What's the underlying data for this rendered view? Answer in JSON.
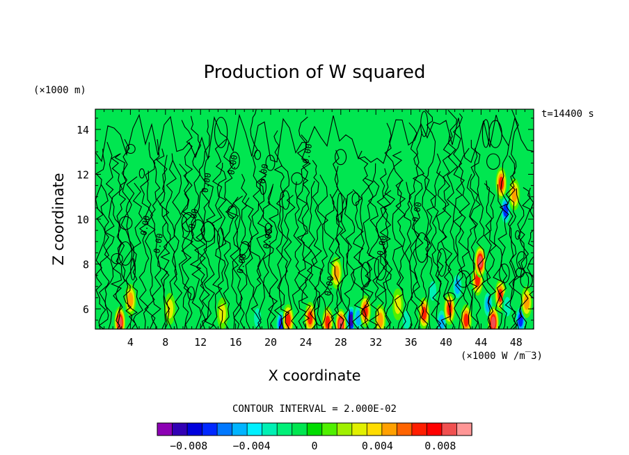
{
  "chart_data": {
    "type": "heatmap",
    "title": "Production of W squared",
    "xlabel": "X coordinate",
    "ylabel": "Z coordinate",
    "x_unit_label": "(×1000 W /m‾3)",
    "y_unit_label": "(×1000 m)",
    "time_label": "t=14400 s",
    "contour_interval_label": "CONTOUR INTERVAL = 2.000E-02",
    "xlim": [
      0,
      50
    ],
    "ylim": [
      5.1,
      14.9
    ],
    "x_ticks": [
      4,
      8,
      12,
      16,
      20,
      24,
      28,
      32,
      36,
      40,
      44,
      48
    ],
    "y_ticks": [
      6,
      8,
      10,
      12,
      14
    ],
    "contour_labels": [
      "0.00",
      "0.00",
      "0.00",
      "0.00",
      "0.00",
      "0.00",
      "0.00",
      "0.00",
      "0.00",
      "0.00",
      "0.00",
      "0.00"
    ],
    "colorbar": {
      "tick_labels": [
        "−0.008",
        "−0.004",
        "0",
        "0.004",
        "0.008"
      ],
      "tick_values": [
        -0.008,
        -0.004,
        0,
        0.004,
        0.008
      ],
      "min": -0.01,
      "max": 0.01,
      "colors": [
        "#8c00b4",
        "#3200b4",
        "#0000dc",
        "#0028ff",
        "#0078ff",
        "#00b4ff",
        "#00f0ff",
        "#00f0b4",
        "#00f078",
        "#00e650",
        "#00dc00",
        "#50f000",
        "#a0f000",
        "#e1f000",
        "#ffdc00",
        "#ffa000",
        "#ff6400",
        "#ff1e00",
        "#ff0000",
        "#f05050",
        "#ff9696"
      ]
    },
    "hotspots": [
      {
        "x": 2.8,
        "z": 5.4,
        "v": 0.009
      },
      {
        "x": 4.0,
        "z": 6.4,
        "v": 0.006
      },
      {
        "x": 21.2,
        "z": 5.3,
        "v": -0.008
      },
      {
        "x": 22.0,
        "z": 5.5,
        "v": 0.008
      },
      {
        "x": 24.5,
        "z": 5.6,
        "v": 0.007
      },
      {
        "x": 26.5,
        "z": 5.4,
        "v": 0.008
      },
      {
        "x": 27.5,
        "z": 7.6,
        "v": 0.006
      },
      {
        "x": 28.0,
        "z": 5.3,
        "v": 0.009
      },
      {
        "x": 29.2,
        "z": 5.5,
        "v": -0.009
      },
      {
        "x": 30.0,
        "z": 5.6,
        "v": -0.006
      },
      {
        "x": 30.8,
        "z": 5.9,
        "v": 0.007
      },
      {
        "x": 32.5,
        "z": 5.5,
        "v": 0.006
      },
      {
        "x": 35.5,
        "z": 5.5,
        "v": -0.004
      },
      {
        "x": 37.5,
        "z": 5.8,
        "v": 0.007
      },
      {
        "x": 38.5,
        "z": 6.8,
        "v": -0.004
      },
      {
        "x": 39.5,
        "z": 5.4,
        "v": -0.006
      },
      {
        "x": 40.4,
        "z": 6.0,
        "v": 0.008
      },
      {
        "x": 41.3,
        "z": 7.0,
        "v": -0.005
      },
      {
        "x": 42.3,
        "z": 5.5,
        "v": 0.007
      },
      {
        "x": 43.6,
        "z": 7.3,
        "v": 0.007
      },
      {
        "x": 43.9,
        "z": 8.1,
        "v": 0.009
      },
      {
        "x": 44.8,
        "z": 6.2,
        "v": -0.006
      },
      {
        "x": 45.4,
        "z": 5.4,
        "v": 0.009
      },
      {
        "x": 46.2,
        "z": 6.6,
        "v": 0.008
      },
      {
        "x": 46.3,
        "z": 11.6,
        "v": 0.008
      },
      {
        "x": 46.8,
        "z": 10.4,
        "v": -0.007
      },
      {
        "x": 47.0,
        "z": 6.1,
        "v": -0.004
      },
      {
        "x": 47.8,
        "z": 11.1,
        "v": 0.006
      },
      {
        "x": 48.5,
        "z": 5.5,
        "v": -0.007
      },
      {
        "x": 49.2,
        "z": 6.3,
        "v": 0.005
      },
      {
        "x": 14.5,
        "z": 5.8,
        "v": 0.003
      },
      {
        "x": 8.5,
        "z": 6.0,
        "v": 0.004
      },
      {
        "x": 34.5,
        "z": 6.2,
        "v": 0.003
      },
      {
        "x": 18.5,
        "z": 5.6,
        "v": -0.003
      }
    ]
  }
}
